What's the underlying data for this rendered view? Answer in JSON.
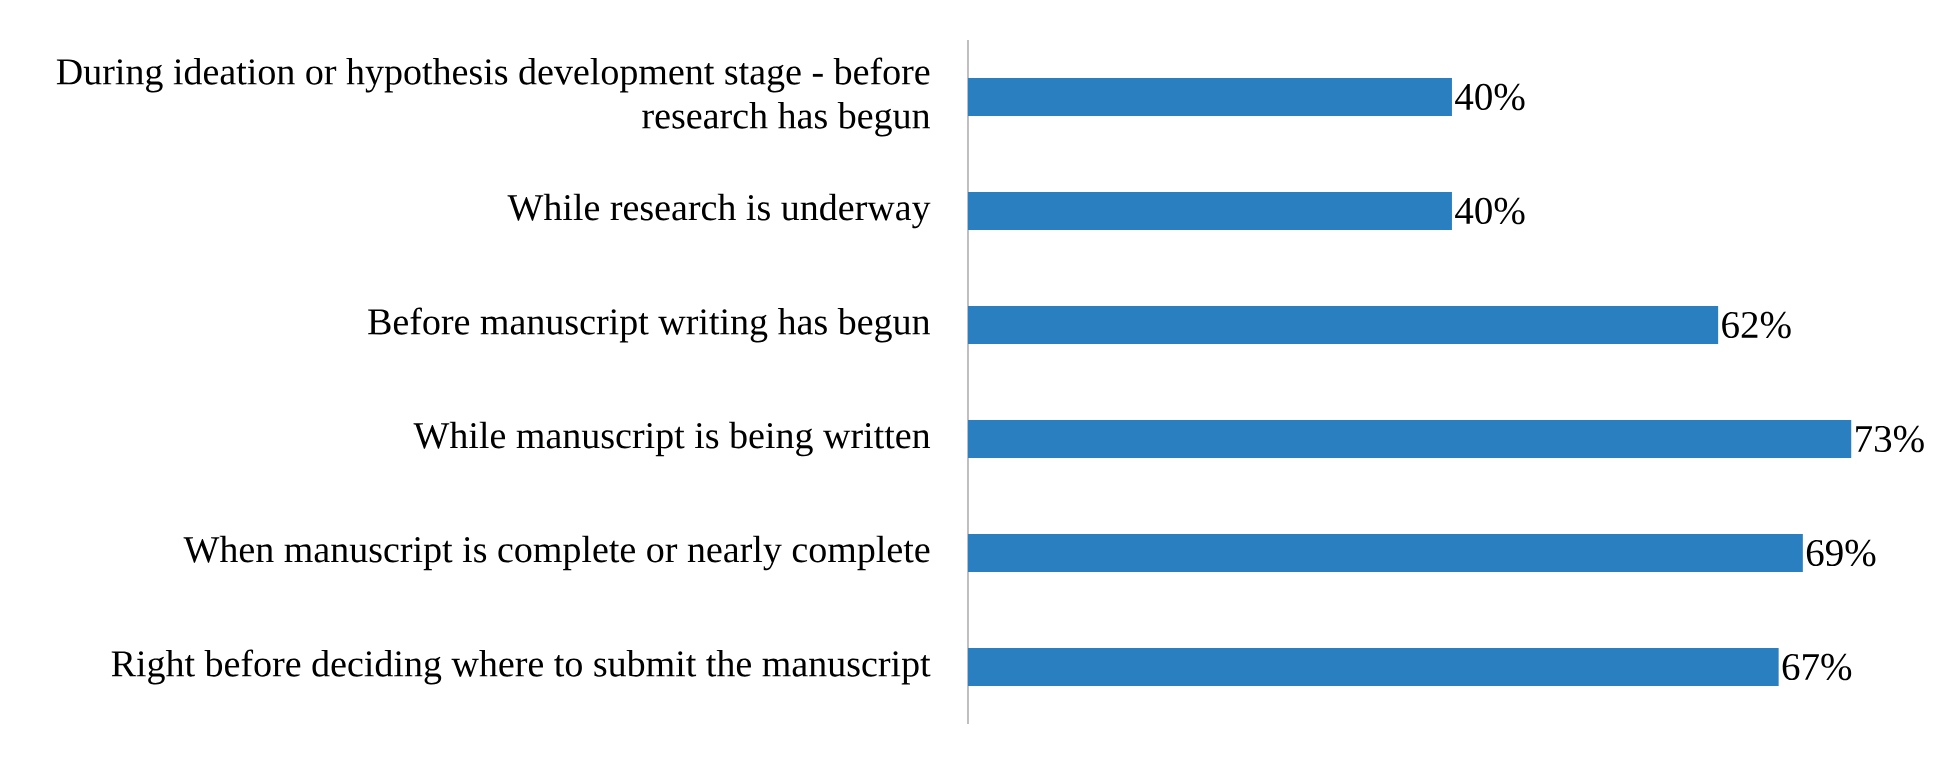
{
  "chart_data": {
    "type": "bar",
    "orientation": "horizontal",
    "categories": [
      "During ideation or hypothesis development stage - before research has begun",
      "While research is underway",
      "Before manuscript writing has begun",
      "While manuscript is being written",
      "When manuscript is complete or nearly complete",
      "Right before deciding where to submit the manuscript"
    ],
    "values": [
      40,
      40,
      62,
      73,
      69,
      67
    ],
    "value_labels": [
      "40%",
      "40%",
      "62%",
      "73%",
      "69%",
      "67%"
    ],
    "color": "#2a7fc1"
  }
}
